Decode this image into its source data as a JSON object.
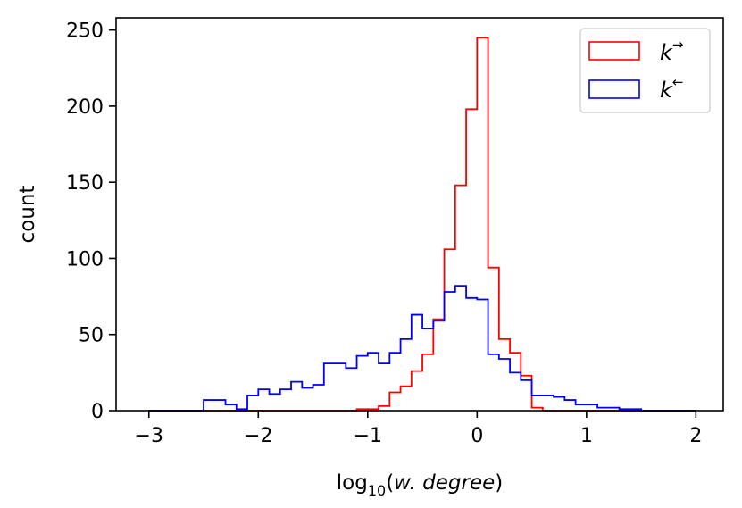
{
  "chart_data": {
    "type": "histogram",
    "xlabel": "log₁₀(w. degree)",
    "xlabel_parts": {
      "prefix": "log",
      "subscript": "10",
      "open": "(",
      "italic": "w. degree",
      "close": ")"
    },
    "ylabel": "count",
    "xlim": [
      -3.3,
      2.25
    ],
    "ylim": [
      0,
      258
    ],
    "xticks": [
      -3,
      -2,
      -1,
      0,
      1,
      2
    ],
    "xtick_labels": [
      "−3",
      "−2",
      "−1",
      "0",
      "1",
      "2"
    ],
    "yticks": [
      0,
      50,
      100,
      150,
      200,
      250
    ],
    "ytick_labels": [
      "0",
      "50",
      "100",
      "150",
      "200",
      "250"
    ],
    "legend_position": "top-right",
    "grid": false,
    "series": [
      {
        "name": "k→",
        "label_base": "k",
        "label_sup": "→",
        "color": "#ff0000",
        "bin_edges": [
          -3.0,
          -1.1,
          -1.0,
          -0.9,
          -0.8,
          -0.7,
          -0.6,
          -0.5,
          -0.4,
          -0.3,
          -0.2,
          -0.1,
          0.0,
          0.1,
          0.2,
          0.3,
          0.4,
          0.5,
          0.6,
          2.0
        ],
        "counts": [
          0,
          1,
          1,
          3,
          12,
          16,
          26,
          37,
          60,
          106,
          148,
          198,
          245,
          94,
          47,
          38,
          23,
          2,
          0
        ]
      },
      {
        "name": "k←",
        "label_base": "k",
        "label_sup": "←",
        "color": "#0000ff",
        "bin_edges": [
          -3.0,
          -2.5,
          -2.3,
          -2.2,
          -2.1,
          -2.0,
          -1.9,
          -1.8,
          -1.7,
          -1.6,
          -1.5,
          -1.4,
          -1.3,
          -1.2,
          -1.1,
          -1.0,
          -0.9,
          -0.8,
          -0.7,
          -0.6,
          -0.5,
          -0.4,
          -0.3,
          -0.2,
          -0.1,
          0.0,
          0.1,
          0.2,
          0.3,
          0.4,
          0.5,
          0.6,
          0.7,
          0.8,
          0.9,
          1.1,
          1.3,
          1.4,
          1.5,
          1.6,
          2.0
        ],
        "counts": [
          0,
          7,
          4,
          1,
          10,
          14,
          11,
          14,
          19,
          15,
          17,
          31,
          31,
          28,
          36,
          38,
          31,
          38,
          47,
          63,
          54,
          59,
          78,
          82,
          74,
          73,
          37,
          34,
          25,
          20,
          10,
          10,
          9,
          7,
          4,
          2,
          1,
          1,
          0,
          0
        ]
      }
    ]
  }
}
